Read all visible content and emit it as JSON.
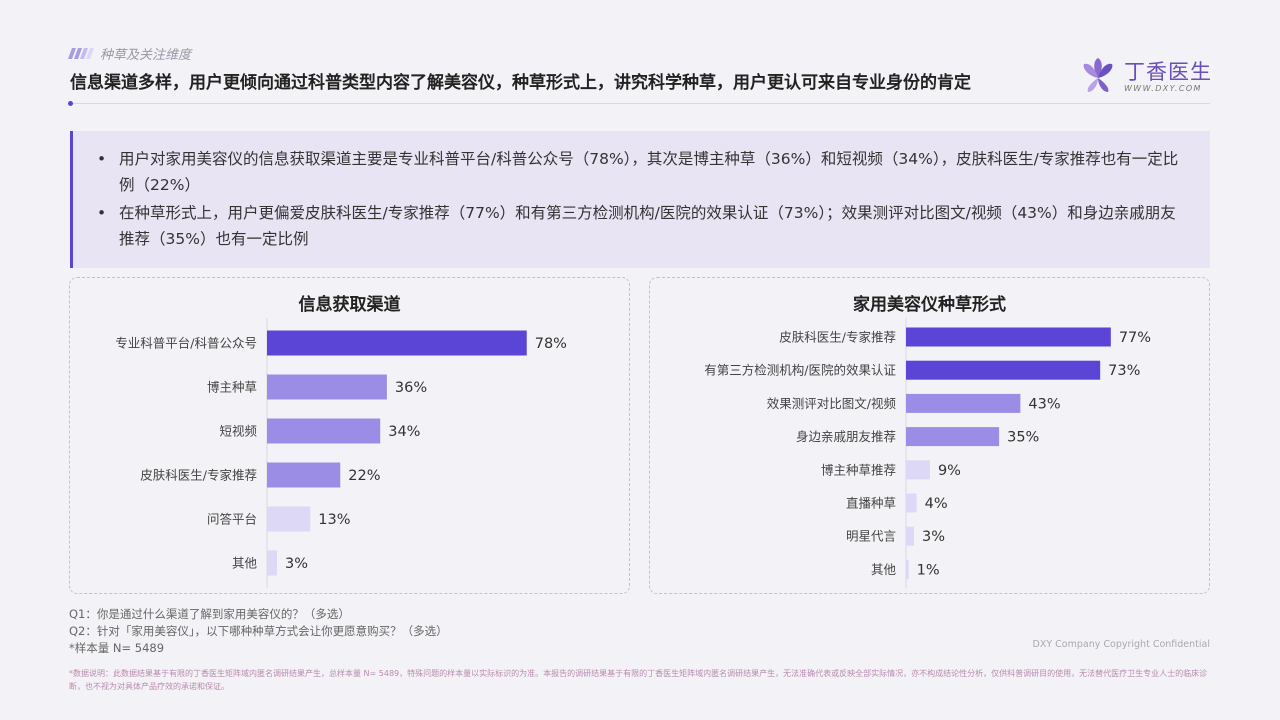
{
  "header": {
    "section_tag": "种草及关注维度",
    "headline": "信息渠道多样，用户更倾向通过科普类型内容了解美容仪，种草形式上，讲究科学种草，用户更认可来自专业身份的肯定"
  },
  "logo": {
    "name": "丁香医生",
    "url": "WWW.DXY.COM"
  },
  "summary": {
    "bullets": [
      "用户对家用美容仪的信息获取渠道主要是专业科普平台/科普公众号（78%），其次是博主种草（36%）和短视频（34%），皮肤科医生/专家推荐也有一定比例（22%）",
      "在种草形式上，用户更偏爱皮肤科医生/专家推荐（77%）和有第三方检测机构/医院的效果认证（73%）；效果测评对比图文/视频（43%）和身边亲戚朋友推荐（35%）也有一定比例"
    ]
  },
  "colors": {
    "accent": "#5b45d4",
    "bar_high": "#5a45d6",
    "bar_mid": "#9b8de6",
    "bar_low": "#ddd8f6"
  },
  "chart_data": [
    {
      "type": "bar",
      "orientation": "horizontal",
      "title": "信息获取渠道",
      "categories": [
        "专业科普平台/科普公众号",
        "博主种草",
        "短视频",
        "皮肤科医生/专家推荐",
        "问答平台",
        "其他"
      ],
      "values": [
        78,
        36,
        34,
        22,
        13,
        3
      ],
      "value_labels": [
        "78%",
        "36%",
        "34%",
        "22%",
        "13%",
        "3%"
      ],
      "xlim": [
        0,
        100
      ],
      "grid": false
    },
    {
      "type": "bar",
      "orientation": "horizontal",
      "title": "家用美容仪种草形式",
      "categories": [
        "皮肤科医生/专家推荐",
        "有第三方检测机构/医院的效果认证",
        "效果测评对比图文/视频",
        "身边亲戚朋友推荐",
        "博主种草推荐",
        "直播种草",
        "明星代言",
        "其他"
      ],
      "values": [
        77,
        73,
        43,
        35,
        9,
        4,
        3,
        1
      ],
      "value_labels": [
        "77%",
        "73%",
        "43%",
        "35%",
        "9%",
        "4%",
        "3%",
        "1%"
      ],
      "xlim": [
        0,
        100
      ],
      "grid": false
    }
  ],
  "footnotes": {
    "q1": "Q1：你是通过什么渠道了解到家用美容仪的？（多选）",
    "q2": "Q2：针对「家用美容仪」，以下哪种种草方式会让你更愿意购买？（多选）",
    "sample": "*样本量 N= 5489"
  },
  "copyright": "DXY Company Copyright Confidential",
  "disclaimer": "*数据说明：此数据结果基于有限的丁香医生矩阵域内匿名调研结果产生，总样本量 N= 5489，特殊问题的样本量以实际标识的为准。本报告的调研结果基于有限的丁香医生矩阵域内匿名调研结果产生，无法准确代表或反映全部实际情况，亦不构成结论性分析，仅供科普调研目的使用，无法替代医疗卫生专业人士的临床诊断，也不视为对具体产品疗效的承诺和保证。"
}
